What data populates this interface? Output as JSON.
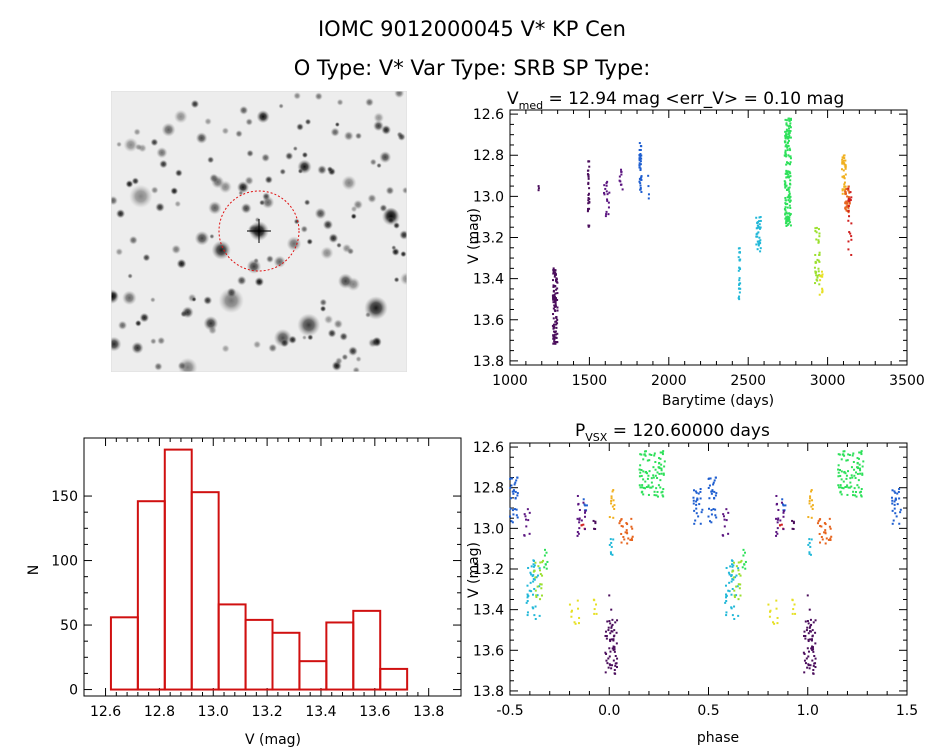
{
  "header": {
    "title_line1": "IOMC 9012000045    V* KP Cen",
    "title_line2": "O Type: V*   Var Type: SRB   SP Type:"
  },
  "image_stamp": {
    "type": "grayscale star field",
    "marker": "red dashed circle with cross at center"
  },
  "chart_data": [
    {
      "id": "lightcurve",
      "type": "scatter",
      "title_main": "V",
      "title_sub": "med",
      "title_rest": " = 12.94 mag <err_V> = 0.10 mag",
      "xlabel": "Barytime (days)",
      "ylabel": "V (mag)",
      "xlim": [
        1000,
        3500
      ],
      "ylim": [
        13.82,
        12.58
      ],
      "y_reversed": true,
      "xticks": [
        1000,
        1500,
        2000,
        2500,
        3000,
        3500
      ],
      "xticklabels": [
        "1000",
        "1500",
        "2000",
        "2500",
        "3000",
        "3500"
      ],
      "yticks": [
        12.6,
        12.8,
        13.0,
        13.2,
        13.4,
        13.6,
        13.8
      ],
      "yticklabels": [
        "12.6",
        "12.8",
        "13.0",
        "13.2",
        "13.4",
        "13.6",
        "13.8"
      ],
      "series": [
        {
          "color": "#4b0e5c",
          "points": [
            [
              1180,
              12.95
            ],
            [
              1180,
              12.97
            ],
            [
              1182,
              12.96
            ]
          ]
        },
        {
          "color": "#4b0e5c",
          "x": [
            1270,
            1300
          ],
          "ymin": 13.35,
          "ymax": 13.72,
          "n": 110
        },
        {
          "color": "#4b0e5c",
          "x": [
            1490,
            1500
          ],
          "ymin": 12.82,
          "ymax": 13.16,
          "n": 30
        },
        {
          "color": "#5b1580",
          "x": [
            1590,
            1630
          ],
          "ymin": 12.92,
          "ymax": 13.1,
          "n": 18
        },
        {
          "color": "#5b1580",
          "x": [
            1690,
            1710
          ],
          "ymin": 12.87,
          "ymax": 12.98,
          "n": 10
        },
        {
          "color": "#1f5fd0",
          "x": [
            1815,
            1830
          ],
          "ymin": 12.74,
          "ymax": 12.98,
          "n": 40
        },
        {
          "color": "#1f5fd0",
          "points": [
            [
              1870,
              12.9
            ],
            [
              1872,
              12.95
            ],
            [
              1874,
              13.01
            ],
            [
              1875,
              12.99
            ]
          ]
        },
        {
          "color": "#22b8d8",
          "x": [
            2440,
            2450
          ],
          "ymin": 13.25,
          "ymax": 13.5,
          "n": 25
        },
        {
          "color": "#22b8d8",
          "x": [
            2550,
            2580
          ],
          "ymin": 13.1,
          "ymax": 13.27,
          "n": 35
        },
        {
          "color": "#2ee05a",
          "x": [
            2730,
            2770
          ],
          "ymin": 12.62,
          "ymax": 13.15,
          "n": 160
        },
        {
          "color": "#9be02e",
          "x": [
            2920,
            2950
          ],
          "ymin": 13.15,
          "ymax": 13.44,
          "n": 35
        },
        {
          "color": "#e6e025",
          "x": [
            2950,
            2970
          ],
          "ymin": 13.35,
          "ymax": 13.5,
          "n": 12
        },
        {
          "color": "#f0b020",
          "x": [
            3090,
            3115
          ],
          "ymin": 12.8,
          "ymax": 13.0,
          "n": 40
        },
        {
          "color": "#e6641e",
          "x": [
            3110,
            3140
          ],
          "ymin": 12.95,
          "ymax": 13.08,
          "n": 40
        },
        {
          "color": "#d02020",
          "x": [
            3130,
            3150
          ],
          "ymin": 12.95,
          "ymax": 13.3,
          "n": 20
        }
      ]
    },
    {
      "id": "histogram",
      "type": "bar",
      "title": "",
      "xlabel": "V (mag)",
      "ylabel": "N",
      "xlim": [
        12.52,
        13.92
      ],
      "ylim": [
        -5,
        195
      ],
      "bin_edges": [
        12.62,
        12.72,
        12.82,
        12.92,
        13.02,
        13.12,
        13.22,
        13.32,
        13.42,
        13.52,
        13.62,
        13.72
      ],
      "values": [
        56,
        146,
        186,
        153,
        66,
        54,
        44,
        22,
        52,
        61,
        16
      ],
      "bar_color": "#d01010",
      "xticks": [
        12.6,
        12.8,
        13.0,
        13.2,
        13.4,
        13.6,
        13.8
      ],
      "xticklabels": [
        "12.6",
        "12.8",
        "13.0",
        "13.2",
        "13.4",
        "13.6",
        "13.8"
      ],
      "yticks": [
        0,
        50,
        100,
        150
      ],
      "yticklabels": [
        "0",
        "50",
        "100",
        "150"
      ]
    },
    {
      "id": "phased",
      "type": "scatter",
      "title_main": "P",
      "title_sub": "VSX",
      "title_rest": " = 120.60000 days",
      "xlabel": "phase",
      "ylabel": "V (mag)",
      "xlim": [
        -0.5,
        1.5
      ],
      "ylim": [
        13.82,
        12.58
      ],
      "y_reversed": true,
      "xticks": [
        -0.5,
        0.0,
        0.5,
        1.0,
        1.5
      ],
      "xticklabels": [
        "-0.5",
        "0.0",
        "0.5",
        "1.0",
        "1.5"
      ],
      "yticks": [
        12.6,
        12.8,
        13.0,
        13.2,
        13.4,
        13.6,
        13.8
      ],
      "yticklabels": [
        "12.6",
        "12.8",
        "13.0",
        "13.2",
        "13.4",
        "13.6",
        "13.8"
      ],
      "period_shift": 1.0,
      "series": [
        {
          "color": "#1f5fd0",
          "x": [
            -0.5,
            -0.46
          ],
          "ymin": 12.75,
          "ymax": 12.98,
          "n": 30
        },
        {
          "color": "#1f5fd0",
          "x": [
            -0.13,
            -0.11
          ],
          "ymin": 12.85,
          "ymax": 12.97,
          "n": 6
        },
        {
          "color": "#1f5fd0",
          "x": [
            0.42,
            0.47
          ],
          "ymin": 12.78,
          "ymax": 12.98,
          "n": 25
        },
        {
          "color": "#22b8d8",
          "x": [
            -0.42,
            -0.35
          ],
          "ymin": 13.15,
          "ymax": 13.45,
          "n": 40
        },
        {
          "color": "#22b8d8",
          "x": [
            0.0,
            0.02
          ],
          "ymin": 13.05,
          "ymax": 13.2,
          "n": 8
        },
        {
          "color": "#2ee05a",
          "x": [
            0.15,
            0.28
          ],
          "ymin": 12.62,
          "ymax": 12.85,
          "n": 90
        },
        {
          "color": "#2ee05a",
          "x": [
            -0.33,
            -0.31
          ],
          "ymin": 13.1,
          "ymax": 13.2,
          "n": 8
        },
        {
          "color": "#9be02e",
          "x": [
            -0.38,
            -0.33
          ],
          "ymin": 13.15,
          "ymax": 13.35,
          "n": 20
        },
        {
          "color": "#e6e025",
          "x": [
            -0.2,
            -0.15
          ],
          "ymin": 13.35,
          "ymax": 13.48,
          "n": 10
        },
        {
          "color": "#e6e025",
          "x": [
            -0.08,
            -0.06
          ],
          "ymin": 13.35,
          "ymax": 13.45,
          "n": 6
        },
        {
          "color": "#f0b020",
          "x": [
            0.0,
            0.03
          ],
          "ymin": 12.8,
          "ymax": 12.95,
          "n": 12
        },
        {
          "color": "#e6641e",
          "x": [
            0.05,
            0.13
          ],
          "ymin": 12.95,
          "ymax": 13.08,
          "n": 25
        },
        {
          "color": "#d02020",
          "x": [
            -0.14,
            -0.12
          ],
          "ymin": 12.95,
          "ymax": 13.02,
          "n": 4
        },
        {
          "color": "#5b1580",
          "x": [
            -0.16,
            -0.12
          ],
          "ymin": 12.84,
          "ymax": 13.1,
          "n": 18
        },
        {
          "color": "#5b1580",
          "x": [
            -0.43,
            -0.4
          ],
          "ymin": 12.9,
          "ymax": 13.05,
          "n": 10
        },
        {
          "color": "#4b0e5c",
          "x": [
            -0.02,
            0.04
          ],
          "ymin": 13.45,
          "ymax": 13.72,
          "n": 60
        },
        {
          "color": "#4b0e5c",
          "x": [
            -0.08,
            -0.06
          ],
          "ymin": 12.95,
          "ymax": 13.05,
          "n": 5
        },
        {
          "color": "#4b0e5c",
          "points": [
            [
              0.0,
              13.33
            ],
            [
              0.01,
              13.4
            ]
          ]
        }
      ]
    }
  ]
}
